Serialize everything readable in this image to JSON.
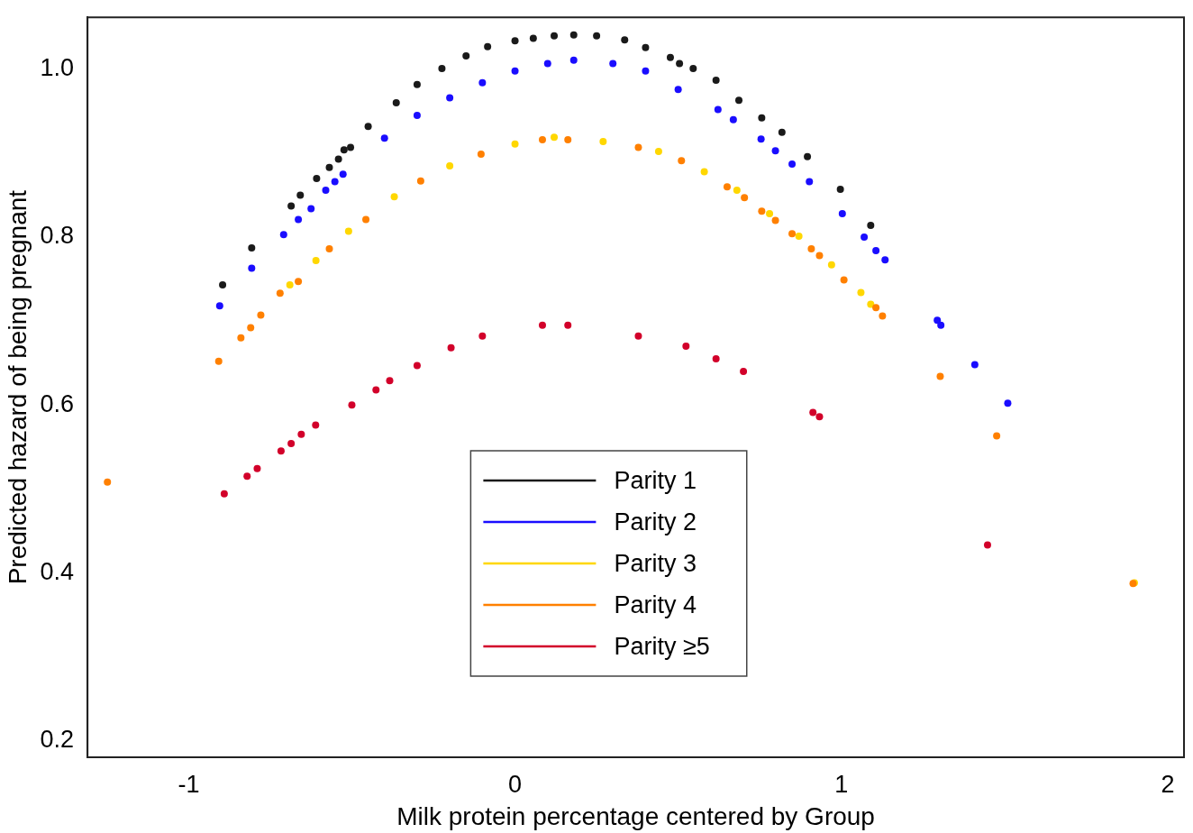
{
  "chart_data": {
    "type": "scatter",
    "xlabel": "Milk protein percentage centered by Group",
    "ylabel": "Predicted hazard of being pregnant",
    "xlim": [
      -1.31,
      2.05
    ],
    "xticks": [
      -1,
      0,
      1,
      2
    ],
    "ylim": [
      0.18,
      1.062
    ],
    "yticks": [
      0.2,
      0.4,
      0.6,
      0.8,
      {
        "value": 1,
        "label": "1.0"
      }
    ],
    "grid": false,
    "legend": "bottom",
    "marker": "circle",
    "series": [
      {
        "name": "Parity 1",
        "color": "#1a1a1a",
        "x": [
          -0.896,
          -0.807,
          -0.686,
          -0.658,
          -0.608,
          -0.569,
          -0.541,
          -0.524,
          -0.504,
          -0.45,
          -0.364,
          -0.3,
          -0.224,
          -0.15,
          -0.084,
          0,
          0.056,
          0.12,
          0.18,
          0.25,
          0.336,
          0.4,
          0.476,
          0.504,
          0.546,
          0.616,
          0.686,
          0.756,
          0.818,
          0.896,
          0.997,
          1.09
        ],
        "values": [
          0.743,
          0.787,
          0.837,
          0.85,
          0.87,
          0.883,
          0.893,
          0.904,
          0.907,
          0.932,
          0.96,
          0.982,
          1.001,
          1.016,
          1.027,
          1.034,
          1.037,
          1.04,
          1.041,
          1.04,
          1.035,
          1.026,
          1.014,
          1.007,
          1.001,
          0.987,
          0.963,
          0.942,
          0.925,
          0.896,
          0.857,
          0.814
        ]
      },
      {
        "name": "Parity 2",
        "color": "#1a0dff",
        "x": [
          -0.905,
          -0.807,
          -0.709,
          -0.664,
          -0.625,
          -0.58,
          -0.552,
          -0.527,
          -0.4,
          -0.3,
          -0.2,
          -0.1,
          0,
          0.1,
          0.18,
          0.3,
          0.4,
          0.5,
          0.622,
          0.669,
          0.754,
          0.798,
          0.849,
          0.902,
          1.003,
          1.07,
          1.106,
          1.134,
          1.294,
          1.305,
          1.409,
          1.51
        ],
        "values": [
          0.718,
          0.763,
          0.803,
          0.821,
          0.834,
          0.856,
          0.866,
          0.875,
          0.918,
          0.945,
          0.966,
          0.984,
          0.998,
          1.007,
          1.011,
          1.007,
          0.998,
          0.976,
          0.952,
          0.94,
          0.917,
          0.903,
          0.887,
          0.866,
          0.828,
          0.8,
          0.784,
          0.773,
          0.701,
          0.695,
          0.648,
          0.602
        ]
      },
      {
        "name": "Parity 3",
        "color": "#ffd700",
        "x": [
          -0.69,
          -0.61,
          -0.51,
          -0.37,
          -0.2,
          0,
          0.12,
          0.27,
          0.44,
          0.58,
          0.68,
          0.78,
          0.87,
          0.97,
          1.06,
          1.09,
          1.898
        ],
        "values": [
          0.743,
          0.772,
          0.807,
          0.848,
          0.885,
          0.911,
          0.919,
          0.914,
          0.902,
          0.878,
          0.856,
          0.828,
          0.801,
          0.767,
          0.734,
          0.72,
          0.388
        ]
      },
      {
        "name": "Parity 4",
        "color": "#ff8000",
        "x": [
          -1.249,
          -0.908,
          -0.84,
          -0.81,
          -0.779,
          -0.72,
          -0.664,
          -0.569,
          -0.457,
          -0.289,
          -0.104,
          0.084,
          0.162,
          0.378,
          0.51,
          0.65,
          0.703,
          0.756,
          0.798,
          0.849,
          0.908,
          0.933,
          1.008,
          1.106,
          1.126,
          1.303,
          1.476,
          1.894
        ],
        "values": [
          0.508,
          0.652,
          0.68,
          0.692,
          0.707,
          0.733,
          0.747,
          0.786,
          0.821,
          0.867,
          0.899,
          0.916,
          0.916,
          0.907,
          0.891,
          0.86,
          0.847,
          0.831,
          0.82,
          0.804,
          0.786,
          0.778,
          0.749,
          0.716,
          0.706,
          0.634,
          0.563,
          0.387
        ]
      },
      {
        "name": "Parity ≥5",
        "color": "#d2002a",
        "x": [
          -0.891,
          -0.821,
          -0.79,
          -0.717,
          -0.686,
          -0.655,
          -0.611,
          -0.5,
          -0.426,
          -0.384,
          -0.3,
          -0.196,
          -0.1,
          0.084,
          0.162,
          0.378,
          0.524,
          0.616,
          0.7,
          0.913,
          0.933,
          1.448
        ],
        "values": [
          0.494,
          0.515,
          0.524,
          0.545,
          0.554,
          0.565,
          0.576,
          0.6,
          0.618,
          0.629,
          0.647,
          0.668,
          0.682,
          0.695,
          0.695,
          0.682,
          0.67,
          0.655,
          0.64,
          0.591,
          0.586,
          0.433
        ]
      }
    ]
  }
}
